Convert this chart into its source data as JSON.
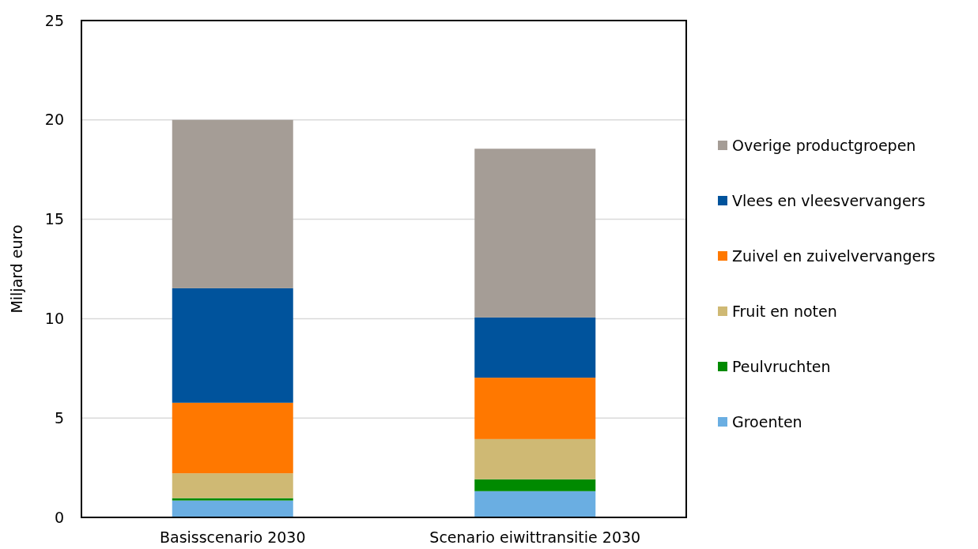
{
  "chart_data": {
    "type": "bar",
    "stacked": true,
    "ylabel": "Miljard euro",
    "categories": [
      "Basisscenario 2030",
      "Scenario eiwittransitie 2030"
    ],
    "ylim": [
      0,
      25
    ],
    "yticks": [
      0,
      5,
      10,
      15,
      20,
      25
    ],
    "grid": "y",
    "legend": "right",
    "series": [
      {
        "name": "Groenten",
        "color": "#6aaee2",
        "values": [
          0.85,
          1.32
        ]
      },
      {
        "name": "Peulvruchten",
        "color": "#008a00",
        "values": [
          0.12,
          0.6
        ]
      },
      {
        "name": "Fruit en noten",
        "color": "#cfb974",
        "values": [
          1.25,
          2.02
        ]
      },
      {
        "name": "Zuivel en zuivelvervangers",
        "color": "#ff7800",
        "values": [
          3.55,
          3.09
        ]
      },
      {
        "name": "Vlees en vleesvervangers",
        "color": "#00539c",
        "values": [
          5.76,
          3.03
        ]
      },
      {
        "name": "Overige productgroepen",
        "color": "#a59d96",
        "values": [
          8.47,
          8.49
        ]
      }
    ]
  }
}
